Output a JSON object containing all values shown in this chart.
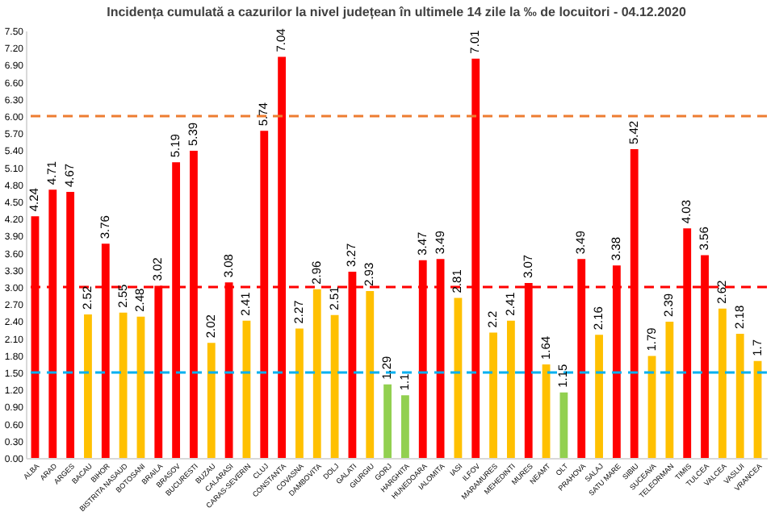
{
  "chart_data": {
    "type": "bar",
    "title": "Incidența cumulată a cazurilor la nivel județean în ultimele 14 zile la ‰ de locuitori - 04.12.2020",
    "categories": [
      "ALBA",
      "ARAD",
      "ARGES",
      "BACAU",
      "BIHOR",
      "BISTRITA NASAUD",
      "BOTOSANI",
      "BRAILA",
      "BRASOV",
      "BUCURESTI",
      "BUZAU",
      "CALARASI",
      "CARAS-SEVERIN",
      "CLUJ",
      "CONSTANTA",
      "COVASNA",
      "DAMBOVITA",
      "DOLJ",
      "GALATI",
      "GIURGIU",
      "GORJ",
      "HARGHITA",
      "HUNEDOARA",
      "IALOMITA",
      "IASI",
      "ILFOV",
      "MARAMURES",
      "MEHEDINTI",
      "MURES",
      "NEAMT",
      "OLT",
      "PRAHOVA",
      "SALAJ",
      "SATU MARE",
      "SIBIU",
      "SUCEAVA",
      "TELEORMAN",
      "TIMIS",
      "TULCEA",
      "VALCEA",
      "VASLUI",
      "VRANCEA"
    ],
    "values": [
      4.24,
      4.71,
      4.67,
      2.52,
      3.76,
      2.55,
      2.48,
      3.02,
      5.19,
      5.39,
      2.02,
      3.08,
      2.41,
      5.74,
      7.04,
      2.27,
      2.96,
      2.51,
      3.27,
      2.93,
      1.29,
      1.1,
      3.47,
      3.49,
      2.81,
      7.01,
      2.2,
      2.41,
      3.07,
      1.64,
      1.15,
      3.49,
      2.16,
      3.38,
      5.42,
      1.79,
      2.39,
      4.03,
      3.56,
      2.62,
      2.18,
      1.7
    ],
    "colors": [
      "#ff0000",
      "#ff0000",
      "#ff0000",
      "#ffc000",
      "#ff0000",
      "#ffc000",
      "#ffc000",
      "#ff0000",
      "#ff0000",
      "#ff0000",
      "#ffc000",
      "#ff0000",
      "#ffc000",
      "#ff0000",
      "#ff0000",
      "#ffc000",
      "#ffc000",
      "#ffc000",
      "#ff0000",
      "#ffc000",
      "#92d050",
      "#92d050",
      "#ff0000",
      "#ff0000",
      "#ffc000",
      "#ff0000",
      "#ffc000",
      "#ffc000",
      "#ff0000",
      "#ffc000",
      "#92d050",
      "#ff0000",
      "#ffc000",
      "#ff0000",
      "#ff0000",
      "#ffc000",
      "#ffc000",
      "#ff0000",
      "#ff0000",
      "#ffc000",
      "#ffc000",
      "#ffc000"
    ],
    "ylim": [
      0,
      7.5
    ],
    "yticks": [
      {
        "value": 0,
        "label": "0.00"
      },
      {
        "value": 0.3,
        "label": "0.30"
      },
      {
        "value": 0.6,
        "label": "0.60"
      },
      {
        "value": 0.9,
        "label": "0.90"
      },
      {
        "value": 1.2,
        "label": "1.20"
      },
      {
        "value": 1.5,
        "label": "1.50"
      },
      {
        "value": 1.8,
        "label": "1.80"
      },
      {
        "value": 2.1,
        "label": "2.10"
      },
      {
        "value": 2.4,
        "label": "2.40"
      },
      {
        "value": 2.7,
        "label": "2.70"
      },
      {
        "value": 3,
        "label": "3.00"
      },
      {
        "value": 3.3,
        "label": "3.30"
      },
      {
        "value": 3.6,
        "label": "3.60"
      },
      {
        "value": 3.9,
        "label": "3.90"
      },
      {
        "value": 4.2,
        "label": "4.20"
      },
      {
        "value": 4.5,
        "label": "4.50"
      },
      {
        "value": 4.8,
        "label": "4.80"
      },
      {
        "value": 5.1,
        "label": "5.10"
      },
      {
        "value": 5.4,
        "label": "5.40"
      },
      {
        "value": 5.7,
        "label": "5.70"
      },
      {
        "value": 6,
        "label": "6.00"
      },
      {
        "value": 6.3,
        "label": "6.30"
      },
      {
        "value": 6.6,
        "label": "6.60"
      },
      {
        "value": 6.9,
        "label": "6.90"
      },
      {
        "value": 7.2,
        "label": "7.20"
      },
      {
        "value": 7.5,
        "label": "7.50"
      }
    ],
    "ref_lines": [
      {
        "axis": "y",
        "value": 6,
        "color": "#ed7d31",
        "line_style": "dashed"
      },
      {
        "axis": "y",
        "value": 3,
        "color": "#ff0000",
        "line_style": "dashed"
      },
      {
        "axis": "y",
        "value": 1.5,
        "color": "#00b0f0",
        "line_style": "dashed"
      }
    ],
    "data_labels": true,
    "grid": false,
    "legend": false
  }
}
